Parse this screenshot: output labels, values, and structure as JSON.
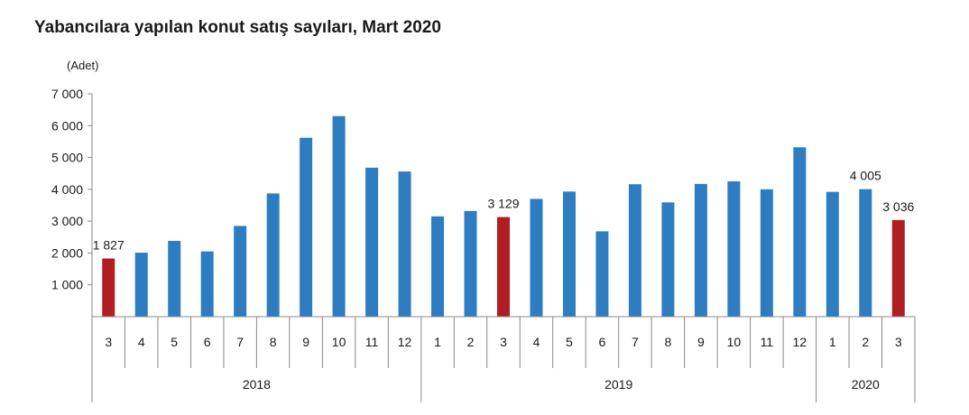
{
  "chart_data": {
    "type": "bar",
    "title": "Yabancılara yapılan konut satış sayıları, Mart 2020",
    "unit_label": "(Adet)",
    "xlabel": "",
    "ylabel": "",
    "ylim": [
      0,
      7000
    ],
    "yticks": [
      "7 000",
      "6 000",
      "5 000",
      "4 000",
      "3 000",
      "2 000",
      "1 000"
    ],
    "ytick_values": [
      7000,
      6000,
      5000,
      4000,
      3000,
      2000,
      1000
    ],
    "grid": false,
    "categories": [
      "3",
      "4",
      "5",
      "6",
      "7",
      "8",
      "9",
      "10",
      "11",
      "12",
      "1",
      "2",
      "3",
      "4",
      "5",
      "6",
      "7",
      "8",
      "9",
      "10",
      "11",
      "12",
      "1",
      "2",
      "3"
    ],
    "values": [
      1827,
      2010,
      2380,
      2050,
      2850,
      3870,
      5620,
      6300,
      4680,
      4560,
      3150,
      3320,
      3129,
      3700,
      3930,
      2680,
      4160,
      3590,
      4170,
      4250,
      4000,
      5320,
      3920,
      4005,
      3036
    ],
    "year_groups": [
      {
        "label": "2018",
        "count": 10
      },
      {
        "label": "2019",
        "count": 12
      },
      {
        "label": "2020",
        "count": 3
      }
    ],
    "data_labels": [
      {
        "index": 0,
        "text": "1 827"
      },
      {
        "index": 12,
        "text": "3 129"
      },
      {
        "index": 23,
        "text": "4 005"
      },
      {
        "index": 24,
        "text": "3 036"
      }
    ],
    "highlight_indices": [
      0,
      12,
      24
    ],
    "colors": {
      "bar": "#2e7dc1",
      "highlight": "#b01e23",
      "axis": "#888888",
      "text": "#1a1a1a"
    }
  }
}
